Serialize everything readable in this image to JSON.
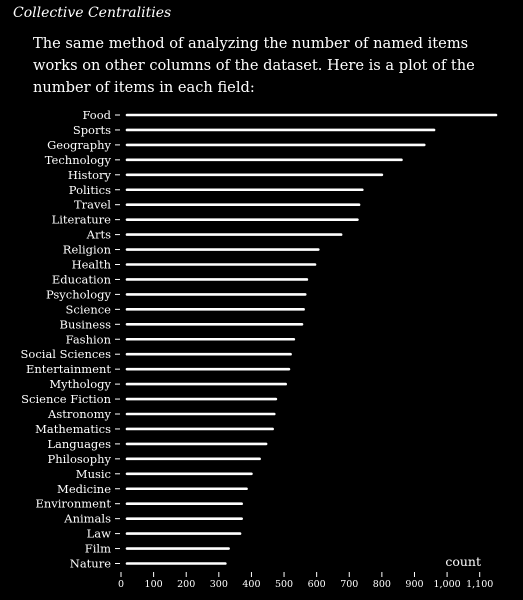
{
  "header": {
    "title": "Collective Centralities"
  },
  "intro": {
    "text": "The same method of analyzing the number of named items works on other columns of the dataset. Here is a plot of the number of items in each field:"
  },
  "chart_data": {
    "type": "bar",
    "orientation": "horizontal",
    "categories": [
      "Food",
      "Sports",
      "Geography",
      "Technology",
      "History",
      "Politics",
      "Travel",
      "Literature",
      "Arts",
      "Religion",
      "Health",
      "Education",
      "Psychology",
      "Science",
      "Business",
      "Fashion",
      "Social Sciences",
      "Entertainment",
      "Mythology",
      "Science Fiction",
      "Astronomy",
      "Mathematics",
      "Languages",
      "Philosophy",
      "Music",
      "Medicine",
      "Environment",
      "Animals",
      "Law",
      "Film",
      "Nature"
    ],
    "values": [
      1150,
      960,
      930,
      860,
      800,
      740,
      730,
      725,
      675,
      605,
      595,
      570,
      565,
      560,
      555,
      530,
      520,
      515,
      505,
      475,
      470,
      465,
      445,
      425,
      400,
      385,
      370,
      370,
      365,
      330,
      320
    ],
    "xlabel": "count",
    "ylabel": "",
    "xlim": [
      0,
      1150
    ],
    "xticks": [
      0,
      100,
      200,
      300,
      400,
      500,
      600,
      700,
      800,
      900,
      1000,
      1100
    ],
    "xtick_labels": [
      "0",
      "100",
      "200",
      "300",
      "400",
      "500",
      "600",
      "700",
      "800",
      "900",
      "1,000",
      "1,100"
    ],
    "grid": false,
    "colors": {
      "background": "#000000",
      "bar": "#ffffff",
      "text": "#ffffff"
    }
  }
}
